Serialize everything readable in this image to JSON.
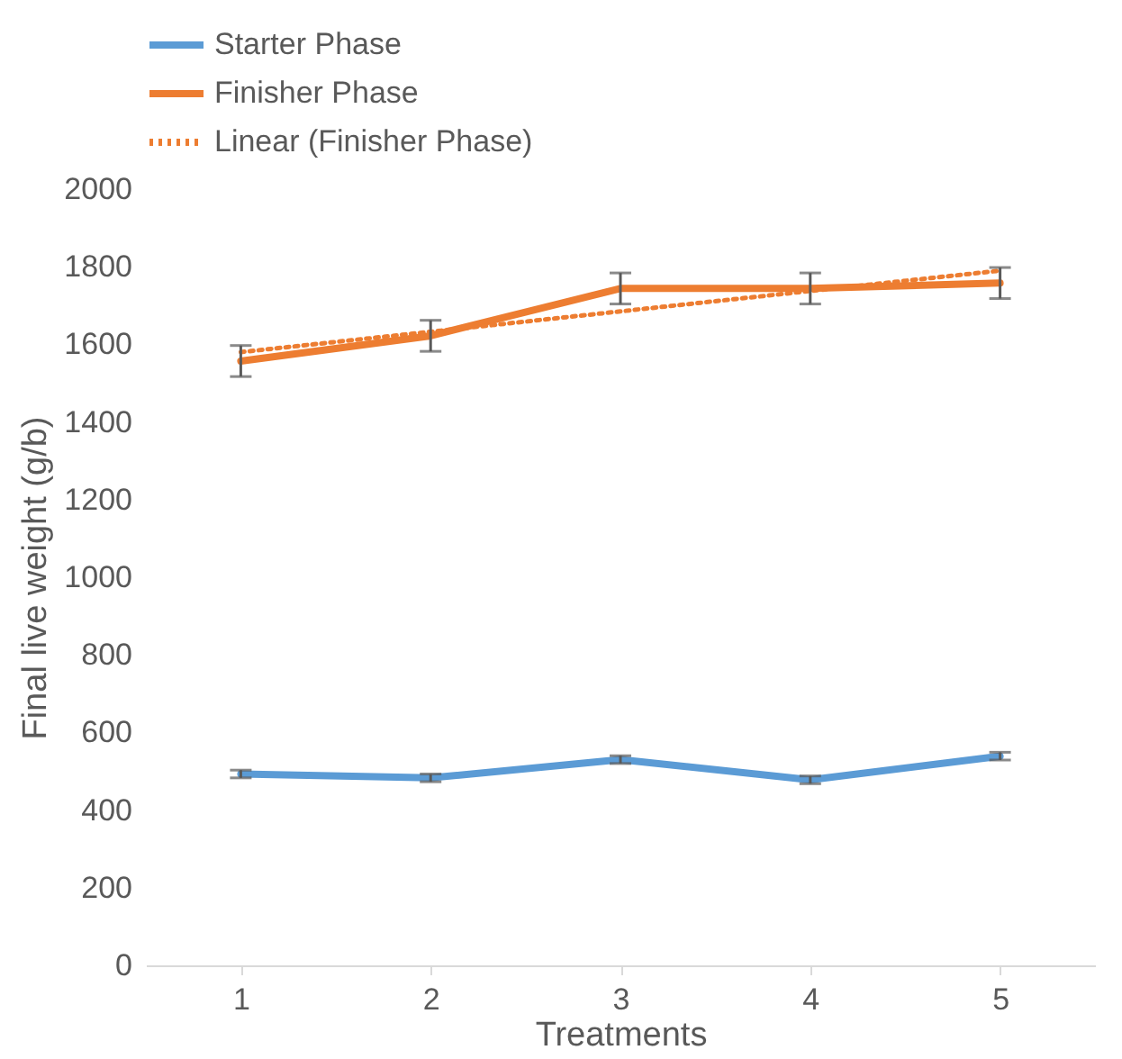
{
  "chart_data": {
    "type": "line",
    "xlabel": "Treatments",
    "ylabel": "Final live weight (g/b)",
    "x": [
      1,
      2,
      3,
      4,
      5
    ],
    "xlim": [
      0.5,
      5.5
    ],
    "xticks": [
      1,
      2,
      3,
      4,
      5
    ],
    "ylim": [
      0,
      2000
    ],
    "yticks": [
      0,
      200,
      400,
      600,
      800,
      1000,
      1200,
      1400,
      1600,
      1800,
      2000
    ],
    "legend": "top",
    "series": [
      {
        "name": "Starter Phase",
        "color": "#5b9bd5",
        "line_style": "solid",
        "values": [
          493,
          483,
          530,
          478,
          539
        ],
        "errors": [
          10,
          10,
          10,
          10,
          10
        ]
      },
      {
        "name": "Finisher Phase",
        "color": "#ed7d31",
        "line_style": "solid",
        "values": [
          1557,
          1622,
          1744,
          1744,
          1758
        ],
        "errors": [
          40,
          40,
          40,
          40,
          40
        ]
      },
      {
        "name": "Linear (Finisher Phase)",
        "color": "#ed7d31",
        "line_style": "dotted",
        "x": [
          1,
          5
        ],
        "values": [
          1580,
          1790
        ]
      }
    ]
  }
}
